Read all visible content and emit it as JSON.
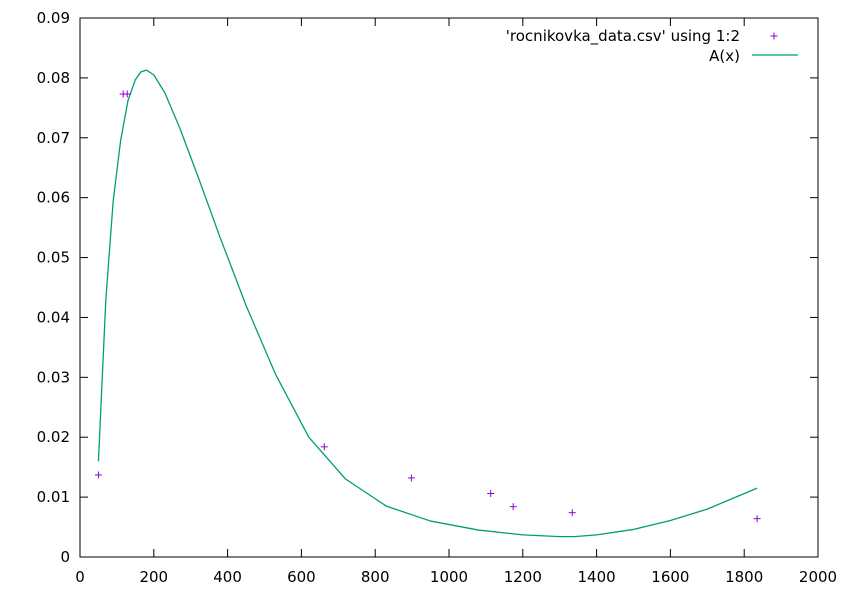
{
  "chart_data": {
    "type": "scatter",
    "xlim": [
      0,
      2000
    ],
    "ylim": [
      0,
      0.09
    ],
    "x_ticks": [
      0,
      200,
      400,
      600,
      800,
      1000,
      1200,
      1400,
      1600,
      1800,
      2000
    ],
    "y_ticks": [
      0,
      0.01,
      0.02,
      0.03,
      0.04,
      0.05,
      0.06,
      0.07,
      0.08,
      0.09
    ],
    "x_tick_labels": [
      "0",
      "200",
      "400",
      "600",
      "800",
      "1000",
      "1200",
      "1400",
      "1600",
      "1800",
      "2000"
    ],
    "y_tick_labels": [
      "0",
      "0.01",
      "0.02",
      "0.03",
      "0.04",
      "0.05",
      "0.06",
      "0.07",
      "0.08",
      "0.09"
    ],
    "grid": false,
    "legend_position": "top-right",
    "series": [
      {
        "name": "'rocnikovka_data.csv' using 1:2",
        "kind": "points",
        "marker": "+",
        "color": "#9400d3",
        "x": [
          50,
          117,
          128,
          662,
          898,
          1113,
          1174,
          1334,
          1835
        ],
        "y": [
          0.0137,
          0.0773,
          0.0773,
          0.0184,
          0.0132,
          0.0106,
          0.0084,
          0.0074,
          0.0064
        ]
      },
      {
        "name": "A(x)",
        "kind": "line",
        "color": "#009e73",
        "x": [
          50,
          70,
          90,
          110,
          130,
          150,
          165,
          180,
          200,
          230,
          270,
          320,
          380,
          450,
          530,
          620,
          720,
          830,
          950,
          1080,
          1200,
          1300,
          1340,
          1400,
          1500,
          1600,
          1700,
          1835
        ],
        "y": [
          0.016,
          0.043,
          0.0595,
          0.0695,
          0.0762,
          0.0797,
          0.081,
          0.0813,
          0.0805,
          0.0775,
          0.0717,
          0.0635,
          0.0533,
          0.042,
          0.0305,
          0.02,
          0.013,
          0.0085,
          0.006,
          0.0045,
          0.0037,
          0.0034,
          0.0034,
          0.0037,
          0.0046,
          0.0061,
          0.008,
          0.0115
        ]
      }
    ]
  }
}
